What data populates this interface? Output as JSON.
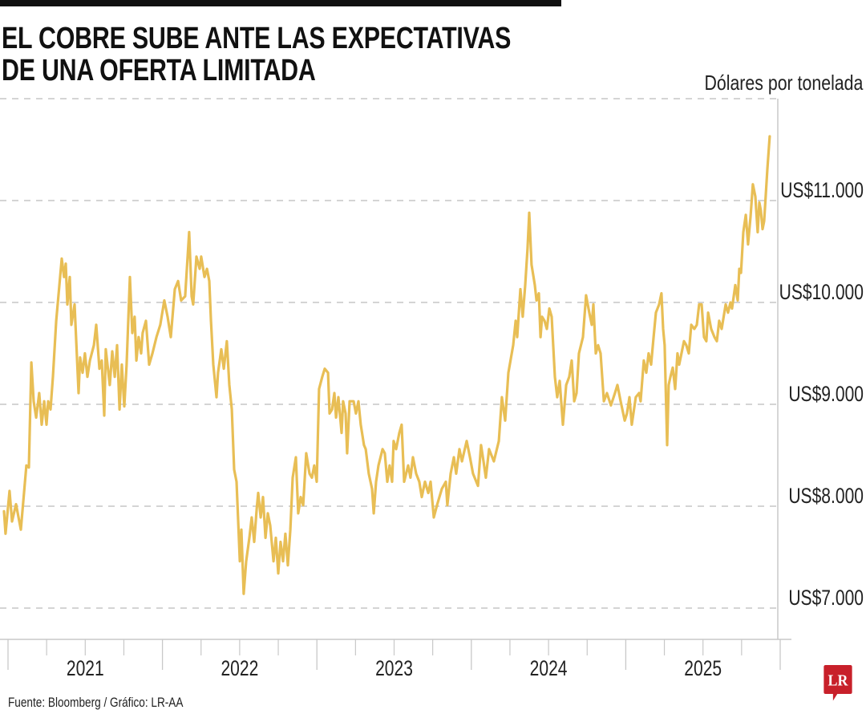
{
  "title_lines": [
    "EL COBRE SUBE ANTE LAS EXPECTATIVAS",
    "DE UNA OFERTA LIMITADA"
  ],
  "footer": "Fuente: Bloomberg / Gráfico: LR-AA",
  "logo_text": "LR",
  "colors": {
    "line": "#E8BE55",
    "grid": "#BBBBBB",
    "axis": "#C8C8C8",
    "logo": "#C8202A",
    "text": "#222222"
  },
  "chart_data": {
    "type": "line",
    "title": "EL COBRE SUBE ANTE LAS EXPECTATIVAS DE UNA OFERTA LIMITADA",
    "ylabel": "Dólares por tonelada",
    "xlabel": "",
    "xlim": [
      2021,
      2026
    ],
    "ylim": [
      7000,
      12000
    ],
    "grid": true,
    "x_tick_labels": [
      "2021",
      "2022",
      "2023",
      "2024",
      "2025"
    ],
    "y_ticks": [
      7000,
      8000,
      9000,
      10000,
      11000
    ],
    "y_tick_labels": [
      "US$7.000",
      "US$8.000",
      "US$9.000",
      "US$10.000",
      "US$11.000"
    ],
    "points": [
      [
        2020.974,
        7950
      ],
      [
        2020.984,
        7730
      ],
      [
        2021.01,
        8150
      ],
      [
        2021.026,
        7850
      ],
      [
        2021.052,
        8020
      ],
      [
        2021.083,
        7770
      ],
      [
        2021.119,
        8400
      ],
      [
        2021.135,
        8380
      ],
      [
        2021.151,
        9410
      ],
      [
        2021.166,
        9030
      ],
      [
        2021.182,
        8870
      ],
      [
        2021.202,
        9110
      ],
      [
        2021.218,
        8800
      ],
      [
        2021.234,
        9030
      ],
      [
        2021.249,
        8800
      ],
      [
        2021.26,
        9030
      ],
      [
        2021.275,
        8950
      ],
      [
        2021.291,
        9270
      ],
      [
        2021.312,
        9820
      ],
      [
        2021.348,
        10430
      ],
      [
        2021.363,
        10250
      ],
      [
        2021.374,
        10380
      ],
      [
        2021.384,
        9980
      ],
      [
        2021.4,
        10250
      ],
      [
        2021.41,
        9780
      ],
      [
        2021.431,
        9980
      ],
      [
        2021.457,
        9110
      ],
      [
        2021.467,
        9460
      ],
      [
        2021.483,
        9310
      ],
      [
        2021.498,
        9500
      ],
      [
        2021.514,
        9270
      ],
      [
        2021.53,
        9430
      ],
      [
        2021.556,
        9580
      ],
      [
        2021.571,
        9780
      ],
      [
        2021.592,
        9350
      ],
      [
        2021.607,
        9430
      ],
      [
        2021.623,
        8890
      ],
      [
        2021.633,
        9540
      ],
      [
        2021.659,
        9190
      ],
      [
        2021.675,
        9520
      ],
      [
        2021.691,
        9270
      ],
      [
        2021.706,
        9580
      ],
      [
        2021.722,
        8950
      ],
      [
        2021.737,
        9390
      ],
      [
        2021.753,
        8980
      ],
      [
        2021.768,
        9390
      ],
      [
        2021.789,
        10250
      ],
      [
        2021.805,
        9700
      ],
      [
        2021.82,
        9860
      ],
      [
        2021.831,
        9430
      ],
      [
        2021.846,
        9660
      ],
      [
        2021.862,
        9500
      ],
      [
        2021.872,
        9700
      ],
      [
        2021.893,
        9820
      ],
      [
        2021.914,
        9390
      ],
      [
        2021.935,
        9500
      ],
      [
        2021.961,
        9660
      ],
      [
        2021.986,
        9780
      ],
      [
        2022.012,
        10020
      ],
      [
        2022.033,
        9860
      ],
      [
        2022.054,
        9660
      ],
      [
        2022.08,
        10130
      ],
      [
        2022.101,
        10210
      ],
      [
        2022.121,
        10020
      ],
      [
        2022.147,
        10060
      ],
      [
        2022.173,
        10690
      ],
      [
        2022.189,
        10060
      ],
      [
        2022.199,
        9980
      ],
      [
        2022.22,
        10450
      ],
      [
        2022.241,
        10330
      ],
      [
        2022.251,
        10450
      ],
      [
        2022.272,
        10250
      ],
      [
        2022.288,
        10330
      ],
      [
        2022.303,
        10210
      ],
      [
        2022.314,
        9820
      ],
      [
        2022.329,
        9390
      ],
      [
        2022.35,
        9070
      ],
      [
        2022.36,
        9310
      ],
      [
        2022.381,
        9540
      ],
      [
        2022.397,
        9350
      ],
      [
        2022.417,
        9620
      ],
      [
        2022.433,
        9190
      ],
      [
        2022.449,
        8950
      ],
      [
        2022.464,
        8360
      ],
      [
        2022.48,
        8240
      ],
      [
        2022.501,
        7460
      ],
      [
        2022.511,
        7770
      ],
      [
        2022.526,
        7140
      ],
      [
        2022.542,
        7460
      ],
      [
        2022.563,
        7690
      ],
      [
        2022.578,
        7890
      ],
      [
        2022.594,
        7650
      ],
      [
        2022.61,
        7970
      ],
      [
        2022.62,
        8130
      ],
      [
        2022.636,
        7890
      ],
      [
        2022.651,
        8090
      ],
      [
        2022.667,
        7690
      ],
      [
        2022.682,
        7930
      ],
      [
        2022.698,
        7810
      ],
      [
        2022.719,
        7460
      ],
      [
        2022.734,
        7690
      ],
      [
        2022.75,
        7340
      ],
      [
        2022.765,
        7650
      ],
      [
        2022.781,
        7460
      ],
      [
        2022.796,
        7730
      ],
      [
        2022.812,
        7420
      ],
      [
        2022.828,
        7770
      ],
      [
        2022.843,
        8280
      ],
      [
        2022.864,
        8480
      ],
      [
        2022.879,
        7930
      ],
      [
        2022.895,
        8090
      ],
      [
        2022.911,
        8010
      ],
      [
        2022.931,
        8520
      ],
      [
        2022.952,
        8320
      ],
      [
        2022.968,
        8280
      ],
      [
        2022.983,
        8400
      ],
      [
        2022.999,
        8240
      ],
      [
        2023.014,
        9150
      ],
      [
        2023.035,
        9270
      ],
      [
        2023.051,
        9350
      ],
      [
        2023.072,
        9310
      ],
      [
        2023.082,
        8910
      ],
      [
        2023.098,
        8950
      ],
      [
        2023.113,
        9110
      ],
      [
        2023.124,
        8870
      ],
      [
        2023.139,
        9070
      ],
      [
        2023.16,
        8720
      ],
      [
        2023.17,
        9030
      ],
      [
        2023.186,
        8910
      ],
      [
        2023.196,
        8520
      ],
      [
        2023.212,
        9030
      ],
      [
        2023.238,
        9030
      ],
      [
        2023.253,
        8910
      ],
      [
        2023.269,
        9030
      ],
      [
        2023.284,
        8800
      ],
      [
        2023.305,
        8600
      ],
      [
        2023.316,
        8560
      ],
      [
        2023.336,
        8320
      ],
      [
        2023.357,
        8170
      ],
      [
        2023.368,
        7930
      ],
      [
        2023.383,
        8240
      ],
      [
        2023.399,
        8400
      ],
      [
        2023.425,
        8560
      ],
      [
        2023.44,
        8520
      ],
      [
        2023.456,
        8240
      ],
      [
        2023.471,
        8400
      ],
      [
        2023.487,
        8240
      ],
      [
        2023.497,
        8640
      ],
      [
        2023.513,
        8560
      ],
      [
        2023.534,
        8720
      ],
      [
        2023.549,
        8800
      ],
      [
        2023.565,
        8240
      ],
      [
        2023.591,
        8400
      ],
      [
        2023.606,
        8280
      ],
      [
        2023.622,
        8480
      ],
      [
        2023.643,
        8320
      ],
      [
        2023.663,
        8240
      ],
      [
        2023.679,
        8090
      ],
      [
        2023.7,
        8240
      ],
      [
        2023.721,
        8130
      ],
      [
        2023.736,
        8240
      ],
      [
        2023.757,
        7890
      ],
      [
        2023.778,
        8010
      ],
      [
        2023.809,
        8170
      ],
      [
        2023.835,
        8240
      ],
      [
        2023.845,
        8010
      ],
      [
        2023.866,
        8320
      ],
      [
        2023.887,
        8480
      ],
      [
        2023.902,
        8320
      ],
      [
        2023.923,
        8560
      ],
      [
        2023.939,
        8440
      ],
      [
        2023.97,
        8640
      ],
      [
        2023.991,
        8480
      ],
      [
        2024.011,
        8320
      ],
      [
        2024.043,
        8200
      ],
      [
        2024.063,
        8600
      ],
      [
        2024.079,
        8440
      ],
      [
        2024.094,
        8280
      ],
      [
        2024.115,
        8560
      ],
      [
        2024.146,
        8440
      ],
      [
        2024.178,
        8640
      ],
      [
        2024.198,
        9070
      ],
      [
        2024.219,
        8840
      ],
      [
        2024.24,
        9310
      ],
      [
        2024.271,
        9580
      ],
      [
        2024.287,
        9820
      ],
      [
        2024.297,
        9660
      ],
      [
        2024.318,
        10130
      ],
      [
        2024.333,
        9860
      ],
      [
        2024.349,
        10170
      ],
      [
        2024.364,
        10530
      ],
      [
        2024.375,
        10880
      ],
      [
        2024.39,
        10370
      ],
      [
        2024.411,
        10170
      ],
      [
        2024.422,
        10020
      ],
      [
        2024.437,
        10090
      ],
      [
        2024.448,
        9660
      ],
      [
        2024.458,
        9860
      ],
      [
        2024.474,
        9820
      ],
      [
        2024.489,
        9740
      ],
      [
        2024.505,
        9940
      ],
      [
        2024.52,
        9860
      ],
      [
        2024.541,
        9270
      ],
      [
        2024.556,
        9070
      ],
      [
        2024.572,
        9230
      ],
      [
        2024.593,
        8800
      ],
      [
        2024.614,
        9190
      ],
      [
        2024.634,
        9270
      ],
      [
        2024.65,
        9430
      ],
      [
        2024.666,
        9030
      ],
      [
        2024.681,
        9110
      ],
      [
        2024.697,
        9500
      ],
      [
        2024.723,
        9660
      ],
      [
        2024.743,
        10070
      ],
      [
        2024.764,
        9900
      ],
      [
        2024.78,
        9780
      ],
      [
        2024.79,
        9980
      ],
      [
        2024.806,
        9500
      ],
      [
        2024.821,
        9580
      ],
      [
        2024.837,
        9500
      ],
      [
        2024.858,
        9030
      ],
      [
        2024.878,
        9110
      ],
      [
        2024.904,
        8990
      ],
      [
        2024.93,
        9110
      ],
      [
        2024.946,
        9190
      ],
      [
        2024.967,
        9030
      ],
      [
        2024.993,
        8840
      ],
      [
        2025.008,
        8910
      ],
      [
        2025.024,
        9070
      ],
      [
        2025.039,
        8800
      ],
      [
        2025.065,
        9070
      ],
      [
        2025.086,
        9110
      ],
      [
        2025.096,
        9030
      ],
      [
        2025.117,
        9430
      ],
      [
        2025.133,
        9310
      ],
      [
        2025.148,
        9500
      ],
      [
        2025.164,
        9390
      ],
      [
        2025.18,
        9660
      ],
      [
        2025.195,
        9900
      ],
      [
        2025.216,
        9980
      ],
      [
        2025.231,
        10090
      ],
      [
        2025.242,
        9740
      ],
      [
        2025.252,
        9580
      ],
      [
        2025.268,
        8600
      ],
      [
        2025.278,
        9190
      ],
      [
        2025.289,
        9270
      ],
      [
        2025.304,
        9360
      ],
      [
        2025.32,
        9150
      ],
      [
        2025.335,
        9500
      ],
      [
        2025.346,
        9390
      ],
      [
        2025.361,
        9500
      ],
      [
        2025.377,
        9620
      ],
      [
        2025.392,
        9580
      ],
      [
        2025.408,
        9500
      ],
      [
        2025.424,
        9780
      ],
      [
        2025.444,
        9740
      ],
      [
        2025.46,
        9780
      ],
      [
        2025.475,
        9980
      ],
      [
        2025.491,
        9980
      ],
      [
        2025.507,
        9660
      ],
      [
        2025.522,
        9620
      ],
      [
        2025.533,
        9900
      ],
      [
        2025.553,
        9740
      ],
      [
        2025.574,
        9660
      ],
      [
        2025.59,
        9620
      ],
      [
        2025.605,
        9820
      ],
      [
        2025.621,
        9740
      ],
      [
        2025.647,
        9980
      ],
      [
        2025.662,
        9900
      ],
      [
        2025.678,
        10000
      ],
      [
        2025.688,
        9940
      ],
      [
        2025.709,
        10170
      ],
      [
        2025.725,
        10020
      ],
      [
        2025.735,
        10330
      ],
      [
        2025.746,
        10290
      ],
      [
        2025.761,
        10690
      ],
      [
        2025.777,
        10860
      ],
      [
        2025.792,
        10570
      ],
      [
        2025.808,
        10840
      ],
      [
        2025.823,
        11160
      ],
      [
        2025.839,
        11040
      ],
      [
        2025.854,
        10690
      ],
      [
        2025.865,
        10980
      ],
      [
        2025.875,
        10900
      ],
      [
        2025.886,
        10720
      ],
      [
        2025.896,
        10800
      ],
      [
        2025.917,
        11310
      ],
      [
        2025.932,
        11630
      ]
    ]
  }
}
